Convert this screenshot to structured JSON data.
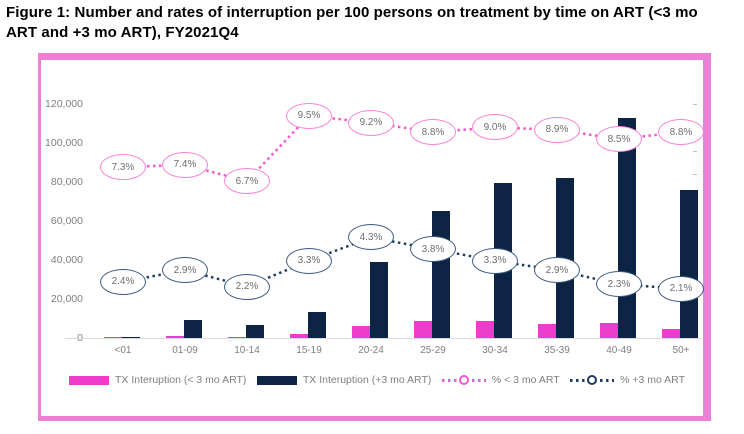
{
  "figure": {
    "title": "Figure 1: Number and rates of interruption per 100 persons on treatment by time on ART (<3 mo ART and +3 mo ART), FY2021Q4"
  },
  "chart_data": {
    "type": "bar",
    "subtype": "combo: grouped bars (primary axis) + dotted lines with ellipse data labels (secondary % axis)",
    "categories": [
      "<01",
      "01-09",
      "10-14",
      "15-19",
      "20-24",
      "25-29",
      "30-34",
      "35-39",
      "40-49",
      "50+"
    ],
    "series": [
      {
        "name": "TX Interuption (< 3 mo ART)",
        "type": "bar",
        "axis": "primary",
        "color": "#ee3ccd",
        "values": [
          500,
          1000,
          700,
          2200,
          6300,
          8500,
          8700,
          7300,
          7900,
          4400
        ]
      },
      {
        "name": "TX Interuption (+3 mo ART)",
        "type": "bar",
        "axis": "primary",
        "color": "#0d2445",
        "values": [
          600,
          9000,
          6800,
          13500,
          39000,
          65000,
          79500,
          82000,
          113000,
          76000
        ]
      },
      {
        "name": "% < 3 mo ART",
        "type": "line",
        "axis": "secondary",
        "color": "#f558cd",
        "ellipse_border": "#f881d5",
        "values": [
          7.3,
          7.4,
          6.7,
          9.5,
          9.2,
          8.8,
          9.0,
          8.9,
          8.5,
          8.8
        ],
        "labels": [
          "7.3%",
          "7.4%",
          "6.7%",
          "9.5%",
          "9.2%",
          "8.8%",
          "9.0%",
          "8.9%",
          "8.5%",
          "8.8%"
        ]
      },
      {
        "name": "% +3 mo ART",
        "type": "line",
        "axis": "secondary",
        "color": "#1f3c61",
        "ellipse_border": "#3d5a7e",
        "values": [
          2.4,
          2.9,
          2.2,
          3.3,
          4.3,
          3.8,
          3.3,
          2.9,
          2.3,
          2.1
        ],
        "labels": [
          "2.4%",
          "2.9%",
          "2.2%",
          "3.3%",
          "4.3%",
          "3.8%",
          "3.3%",
          "2.9%",
          "2.3%",
          "2.1%"
        ]
      }
    ],
    "y_axis": {
      "min": 0,
      "max": 120000,
      "tick_interval": 20000,
      "tick_labels": [
        "0",
        "20,000",
        "40,000",
        "60,000",
        "80,000",
        "100,000",
        "120,000"
      ]
    },
    "y2_axis": {
      "min": 0,
      "max": 10,
      "tick_interval": 1,
      "tick_labels_visible": false
    },
    "grid": false,
    "legend_position": "bottom",
    "title": "",
    "xlabel": "",
    "ylabel": ""
  },
  "legend": {
    "items": [
      {
        "label": "TX Interuption (< 3 mo ART)",
        "swatch": "bar",
        "color": "#ee3ccd"
      },
      {
        "label": "TX Interuption (+3 mo ART)",
        "swatch": "bar",
        "color": "#0d2445"
      },
      {
        "label": "% < 3 mo ART",
        "swatch": "dotted-line-circle",
        "color": "#f558cd"
      },
      {
        "label": "% +3 mo ART",
        "swatch": "dotted-line-circle",
        "color": "#1f3c61"
      }
    ]
  },
  "colors": {
    "frame_border": "#ee7fd7",
    "axis_text": "#7f7f7f",
    "data_label_text": "#6e6e6e",
    "baseline": "#d9d9d9"
  }
}
